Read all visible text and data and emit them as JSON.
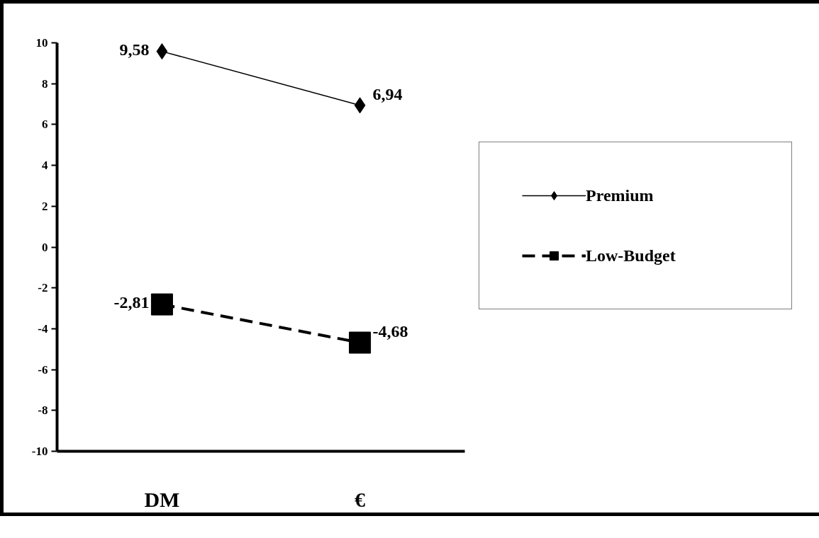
{
  "chart_data": {
    "type": "line",
    "categories": [
      "DM",
      "€"
    ],
    "series": [
      {
        "name": "Premium",
        "color": "#000000",
        "values": [
          9.58,
          6.94
        ],
        "value_labels": [
          "9,58",
          "6,94"
        ],
        "marker": "diamond",
        "line_style": "solid"
      },
      {
        "name": "Low-Budget",
        "color": "#000000",
        "values": [
          -2.81,
          -4.68
        ],
        "value_labels": [
          "-2,81",
          "-4,68"
        ],
        "marker": "square",
        "line_style": "dashed"
      }
    ],
    "ylim": [
      -10,
      10
    ],
    "yticks": [
      -10,
      -8,
      -6,
      -4,
      -2,
      0,
      2,
      4,
      6,
      8,
      10
    ],
    "grid": false,
    "legend": "right"
  }
}
